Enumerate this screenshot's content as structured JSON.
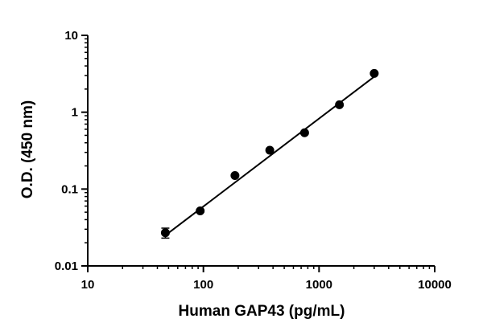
{
  "chart_data": {
    "type": "scatter",
    "title": "",
    "xlabel": "Human GAP43 (pg/mL)",
    "ylabel": "O.D. (450 nm)",
    "xscale": "log",
    "yscale": "log",
    "xlim": [
      10,
      10000
    ],
    "ylim": [
      0.01,
      10
    ],
    "x_ticks": [
      {
        "value": 10,
        "label": "10"
      },
      {
        "value": 100,
        "label": "100"
      },
      {
        "value": 1000,
        "label": "1000"
      },
      {
        "value": 10000,
        "label": "10000"
      }
    ],
    "y_ticks": [
      {
        "value": 0.01,
        "label": "0.01"
      },
      {
        "value": 0.1,
        "label": "0.1"
      },
      {
        "value": 1,
        "label": "1"
      },
      {
        "value": 10,
        "label": "10"
      }
    ],
    "grid": false,
    "legend": "none",
    "series": [
      {
        "x": [
          46.9,
          93.8,
          187.5,
          375,
          750,
          1500,
          3000
        ],
        "y": [
          0.027,
          0.052,
          0.15,
          0.32,
          0.54,
          1.25,
          3.2
        ],
        "error": [
          0.004,
          0.002,
          0.005,
          0.01,
          0.02,
          0.04,
          0.08
        ],
        "color": "#000000"
      }
    ],
    "fit_line": {
      "x": [
        46.9,
        3000
      ],
      "y": [
        0.025,
        2.9
      ],
      "color": "#000000"
    }
  }
}
